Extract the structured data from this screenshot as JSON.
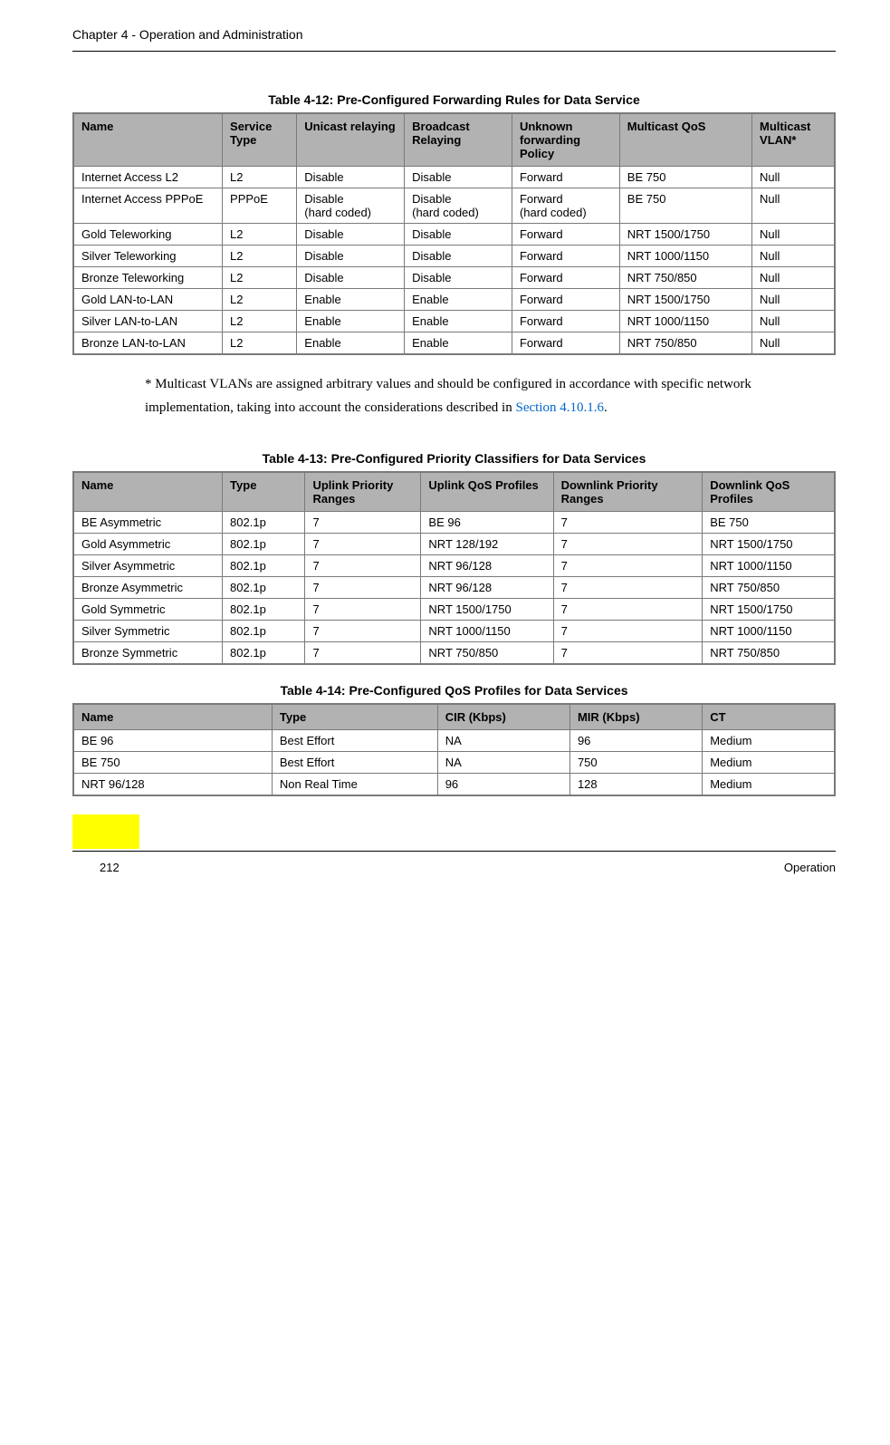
{
  "header": {
    "chapter": "Chapter 4 - Operation and Administration"
  },
  "table1": {
    "title": "Table 4-12: Pre-Configured Forwarding Rules for Data Service",
    "columns": [
      "Name",
      "Service Type",
      "Unicast relaying",
      "Broadcast Relaying",
      "Unknown forwarding Policy",
      "Multicast QoS",
      "Multicast VLAN*"
    ],
    "rows": [
      [
        "Internet Access L2",
        "L2",
        "Disable",
        "Disable",
        "Forward",
        "BE 750",
        "Null"
      ],
      [
        "Internet Access PPPoE",
        "PPPoE",
        "Disable\n(hard coded)",
        "Disable\n(hard coded)",
        "Forward\n(hard coded)",
        "BE 750",
        "Null"
      ],
      [
        "Gold Teleworking",
        "L2",
        "Disable",
        "Disable",
        "Forward",
        "NRT 1500/1750",
        "Null"
      ],
      [
        "Silver Teleworking",
        "L2",
        "Disable",
        "Disable",
        "Forward",
        "NRT 1000/1150",
        "Null"
      ],
      [
        "Bronze Teleworking",
        "L2",
        "Disable",
        "Disable",
        "Forward",
        "NRT 750/850",
        "Null"
      ],
      [
        "Gold LAN-to-LAN",
        "L2",
        "Enable",
        "Enable",
        "Forward",
        "NRT 1500/1750",
        "Null"
      ],
      [
        "Silver LAN-to-LAN",
        "L2",
        "Enable",
        "Enable",
        "Forward",
        "NRT 1000/1150",
        "Null"
      ],
      [
        "Bronze LAN-to-LAN",
        "L2",
        "Enable",
        "Enable",
        "Forward",
        "NRT 750/850",
        "Null"
      ]
    ]
  },
  "note": {
    "prefix": "* Multicast VLANs are assigned arbitrary values and should be configured in accordance with specific network implementation, taking into account the considerations described in ",
    "link": "Section 4.10.1.6",
    "suffix": "."
  },
  "table2": {
    "title": "Table 4-13: Pre-Configured Priority Classifiers for Data Services",
    "columns": [
      "Name",
      "Type",
      "Uplink Priority Ranges",
      "Uplink QoS Profiles",
      "Downlink Priority Ranges",
      "Downlink QoS Profiles"
    ],
    "rows": [
      [
        "BE Asymmetric",
        "802.1p",
        "7",
        "BE 96",
        "7",
        "BE 750"
      ],
      [
        "Gold Asymmetric",
        "802.1p",
        "7",
        "NRT 128/192",
        "7",
        "NRT 1500/1750"
      ],
      [
        "Silver Asymmetric",
        "802.1p",
        "7",
        "NRT 96/128",
        "7",
        "NRT 1000/1150"
      ],
      [
        "Bronze Asymmetric",
        "802.1p",
        "7",
        "NRT 96/128",
        "7",
        "NRT 750/850"
      ],
      [
        "Gold Symmetric",
        "802.1p",
        "7",
        "NRT 1500/1750",
        "7",
        "NRT 1500/1750"
      ],
      [
        "Silver Symmetric",
        "802.1p",
        "7",
        "NRT 1000/1150",
        "7",
        "NRT 1000/1150"
      ],
      [
        "Bronze Symmetric",
        "802.1p",
        "7",
        "NRT 750/850",
        "7",
        "NRT 750/850"
      ]
    ]
  },
  "table3": {
    "title": "Table 4-14: Pre-Configured QoS Profiles for Data Services",
    "columns": [
      "Name",
      "Type",
      "CIR (Kbps)",
      "MIR (Kbps)",
      "CT"
    ],
    "rows": [
      [
        "BE 96",
        "Best Effort",
        "NA",
        "96",
        "Medium"
      ],
      [
        "BE 750",
        "Best Effort",
        "NA",
        "750",
        "Medium"
      ],
      [
        "NRT 96/128",
        "Non Real Time",
        "96",
        "128",
        "Medium"
      ]
    ]
  },
  "footer": {
    "page": "212",
    "section": "Operation"
  },
  "colors": {
    "header_bg": "#b2b2b2",
    "border": "#7a7a7a",
    "link": "#0066cc",
    "tab": "#ffff00"
  }
}
